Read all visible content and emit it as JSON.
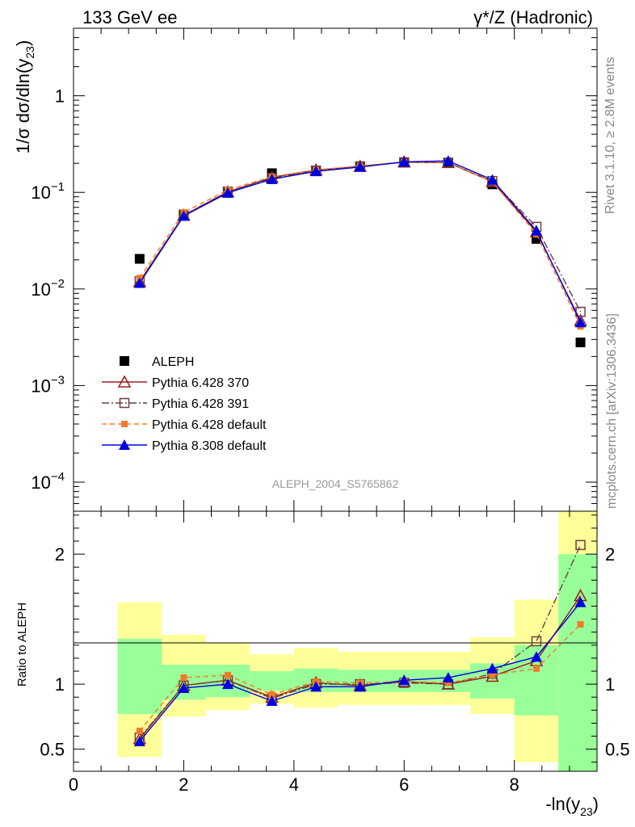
{
  "header": {
    "left_title": "133 GeV ee",
    "right_title": "γ*/Z (Hadronic)"
  },
  "side_labels": {
    "rivet": "Rivet 3.1.10, ≥ 2.8M events",
    "mcplots": "mcplots.cern.ch [arXiv:1306.3436]"
  },
  "chart_data": [
    {
      "type": "line",
      "panel": "main",
      "ylabel": "1/σ  dσ/dln(y23)",
      "yscale": "log",
      "xlim": [
        0,
        9.5
      ],
      "ylim": [
        5e-05,
        5
      ],
      "yticks": [
        {
          "v": 0.0001,
          "mant": "10",
          "exp": "−4"
        },
        {
          "v": 0.001,
          "mant": "10",
          "exp": "−3"
        },
        {
          "v": 0.01,
          "mant": "10",
          "exp": "−2"
        },
        {
          "v": 0.1,
          "mant": "10",
          "exp": "−1"
        },
        {
          "v": 1,
          "mant": "1",
          "exp": ""
        }
      ],
      "annotation": "ALEPH_2004_S5765862",
      "legend_position": "bottom-left",
      "x": [
        1.2,
        2.0,
        2.8,
        3.6,
        4.4,
        5.2,
        6.0,
        6.8,
        7.6,
        8.4,
        9.2
      ],
      "series": [
        {
          "name": "ALEPH",
          "marker": "square",
          "color": "#000000",
          "dash": "",
          "values": [
            0.0205,
            0.059,
            0.099,
            0.158,
            0.167,
            0.186,
            0.203,
            0.203,
            0.121,
            0.033,
            0.0028
          ]
        },
        {
          "name": "Pythia 6.428 370",
          "marker": "triangle-open",
          "color": "#9b1b1b",
          "dash": "",
          "values": [
            0.0119,
            0.058,
            0.101,
            0.143,
            0.17,
            0.186,
            0.206,
            0.203,
            0.129,
            0.039,
            0.0047
          ]
        },
        {
          "name": "Pythia 6.428 391",
          "marker": "square-open",
          "color": "#6b4040",
          "dash": "9,3,2,3",
          "values": [
            0.012,
            0.058,
            0.102,
            0.14,
            0.168,
            0.186,
            0.205,
            0.203,
            0.131,
            0.044,
            0.0058
          ]
        },
        {
          "name": "Pythia 6.428 default",
          "marker": "square-small",
          "color": "#f07a2a",
          "dash": "6,4",
          "values": [
            0.013,
            0.062,
            0.106,
            0.145,
            0.171,
            0.188,
            0.207,
            0.205,
            0.129,
            0.037,
            0.0041
          ]
        },
        {
          "name": "Pythia 8.308 default",
          "marker": "triangle",
          "color": "#0000dd",
          "dash": "",
          "values": [
            0.0115,
            0.057,
            0.099,
            0.137,
            0.165,
            0.183,
            0.207,
            0.212,
            0.135,
            0.04,
            0.0045
          ]
        }
      ]
    },
    {
      "type": "line",
      "panel": "ratio",
      "ylabel": "Ratio to ALEPH",
      "xlabel": "-ln(y23)",
      "xlim": [
        0,
        9.5
      ],
      "ylim": [
        0.33,
        2.33
      ],
      "xticks": [
        0,
        2,
        4,
        6,
        8
      ],
      "yticks": [
        0.5,
        1,
        2
      ],
      "bands": [
        {
          "x0": 0.8,
          "x1": 1.6,
          "g": [
            0.77,
            1.35
          ],
          "y": [
            0.44,
            1.63
          ]
        },
        {
          "x0": 1.6,
          "x1": 2.4,
          "g": [
            0.88,
            1.15
          ],
          "y": [
            0.75,
            1.38
          ]
        },
        {
          "x0": 2.4,
          "x1": 3.2,
          "g": [
            0.9,
            1.15
          ],
          "y": [
            0.8,
            1.32
          ]
        },
        {
          "x0": 3.2,
          "x1": 4.0,
          "g": [
            0.95,
            1.1
          ],
          "y": [
            0.85,
            1.23
          ]
        },
        {
          "x0": 4.0,
          "x1": 4.8,
          "g": [
            0.94,
            1.12
          ],
          "y": [
            0.82,
            1.28
          ]
        },
        {
          "x0": 4.8,
          "x1": 5.6,
          "g": [
            0.94,
            1.11
          ],
          "y": [
            0.84,
            1.25
          ]
        },
        {
          "x0": 5.6,
          "x1": 6.4,
          "g": [
            0.94,
            1.11
          ],
          "y": [
            0.84,
            1.25
          ]
        },
        {
          "x0": 6.4,
          "x1": 7.2,
          "g": [
            0.94,
            1.11
          ],
          "y": [
            0.84,
            1.25
          ]
        },
        {
          "x0": 7.2,
          "x1": 8.0,
          "g": [
            0.89,
            1.16
          ],
          "y": [
            0.77,
            1.36
          ]
        },
        {
          "x0": 8.0,
          "x1": 8.8,
          "g": [
            0.76,
            1.3
          ],
          "y": [
            0.4,
            1.65
          ]
        },
        {
          "x0": 8.8,
          "x1": 9.6,
          "g": [
            0.33,
            2.0
          ],
          "y": [
            0.33,
            2.33
          ]
        }
      ],
      "x": [
        1.2,
        2.0,
        2.8,
        3.6,
        4.4,
        5.2,
        6.0,
        6.8,
        7.6,
        8.4,
        9.2
      ],
      "series": [
        {
          "name": "Pythia 6.428 370",
          "values": [
            0.58,
            0.99,
            1.03,
            0.9,
            1.01,
            0.99,
            1.02,
            1.0,
            1.06,
            1.18,
            1.68
          ]
        },
        {
          "name": "Pythia 6.428 391",
          "values": [
            0.59,
            0.99,
            1.03,
            0.89,
            1.0,
            1.0,
            1.01,
            1.0,
            1.08,
            1.33,
            2.07
          ]
        },
        {
          "name": "Pythia 6.428 default",
          "values": [
            0.64,
            1.05,
            1.07,
            0.92,
            1.02,
            1.01,
            1.02,
            1.01,
            1.07,
            1.12,
            1.46
          ]
        },
        {
          "name": "Pythia 8.308 default",
          "values": [
            0.56,
            0.97,
            1.0,
            0.87,
            0.98,
            0.98,
            1.03,
            1.05,
            1.12,
            1.21,
            1.63
          ]
        }
      ]
    }
  ]
}
